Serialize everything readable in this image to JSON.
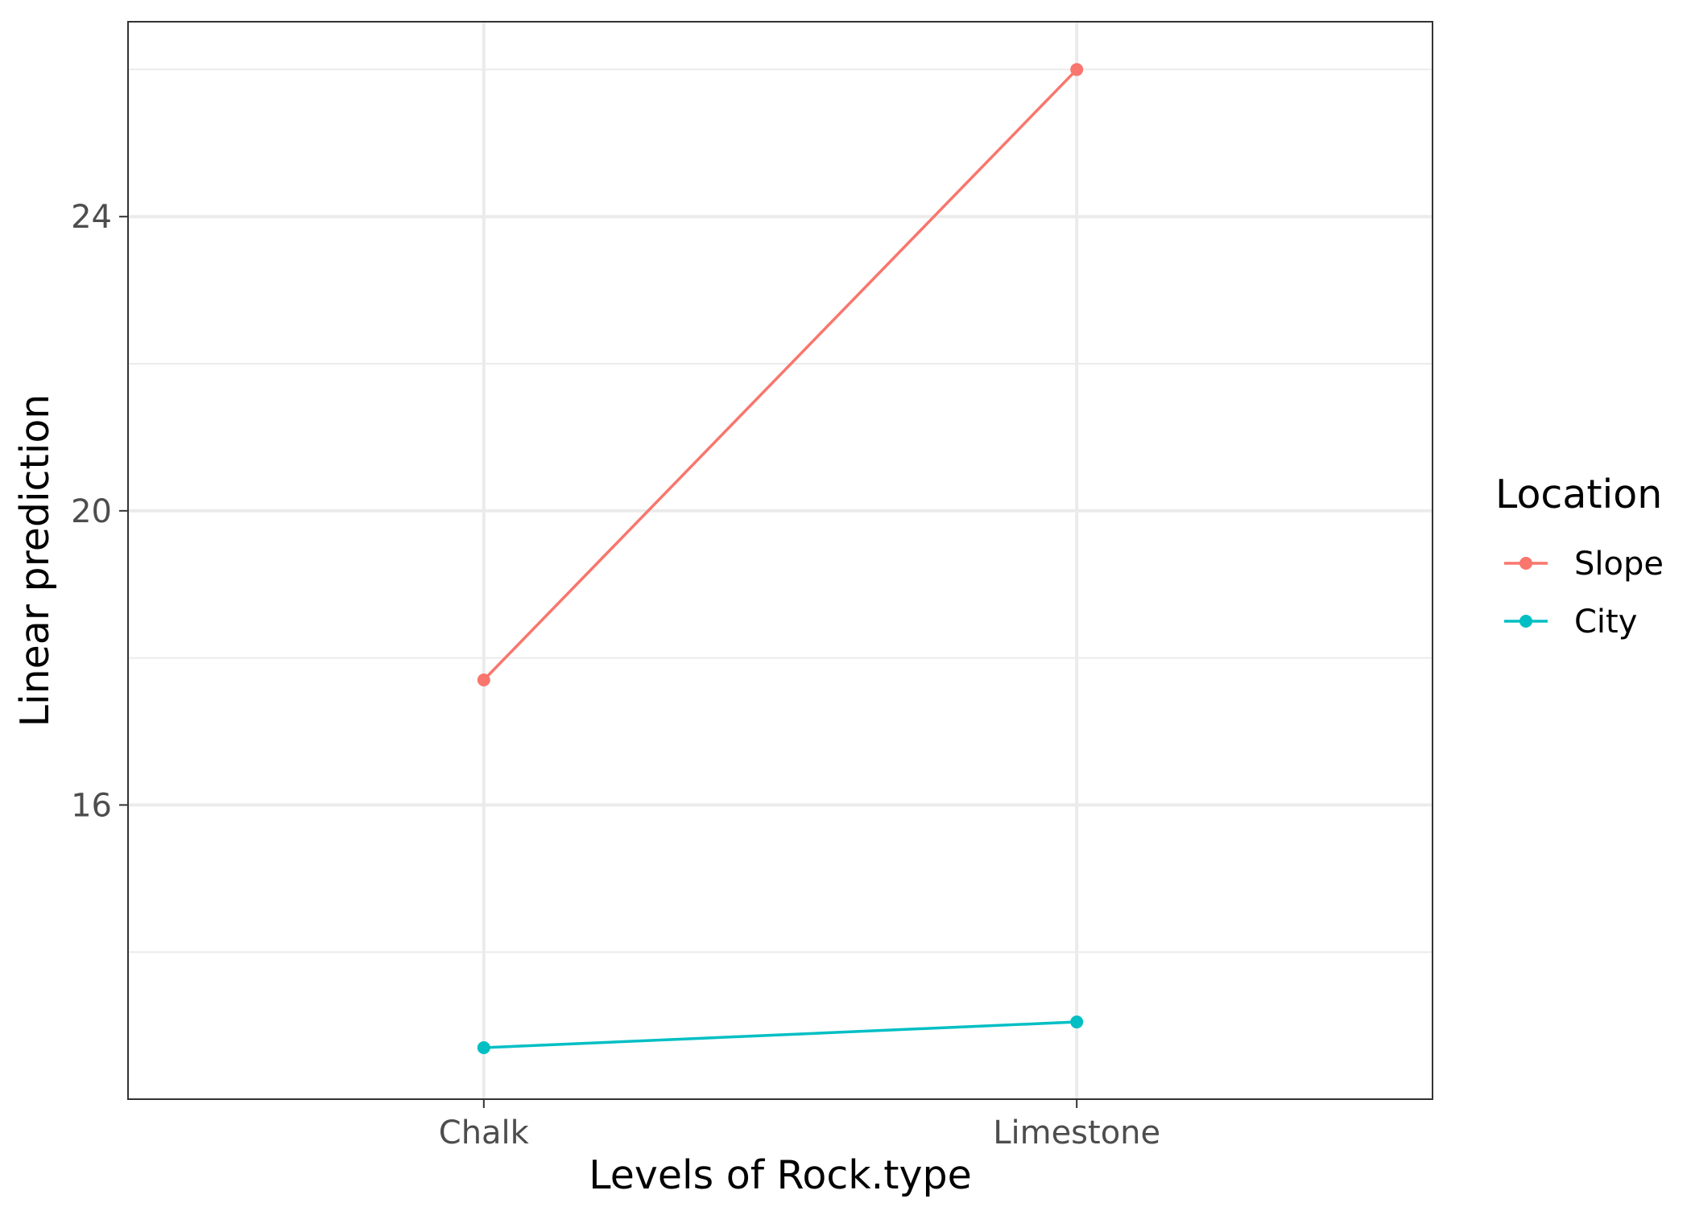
{
  "chart_data": {
    "type": "line",
    "xlabel": "Levels of Rock.type",
    "ylabel": "Linear prediction",
    "categories": [
      "Chalk",
      "Limestone"
    ],
    "ylim": [
      12.0,
      26.65
    ],
    "yticks": [
      16,
      20,
      24
    ],
    "grid": true,
    "legend": {
      "title": "Location",
      "placement": "right"
    },
    "series": [
      {
        "name": "Slope",
        "color": "#F8766D",
        "values": [
          17.7,
          26.0
        ]
      },
      {
        "name": "City",
        "color": "#00BFC4",
        "values": [
          12.7,
          13.05
        ]
      }
    ]
  }
}
